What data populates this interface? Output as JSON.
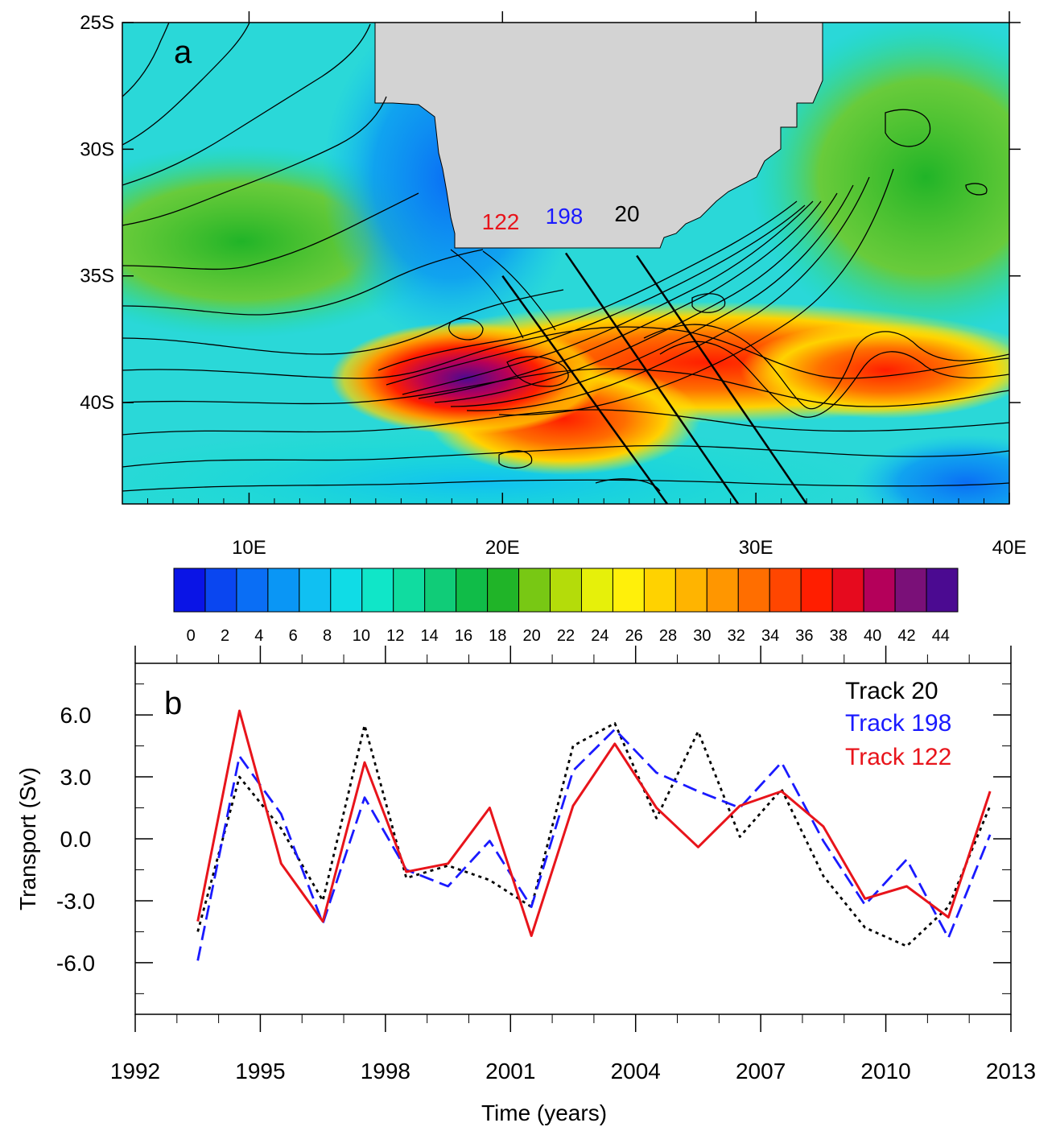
{
  "chart_data": [
    {
      "type": "heatmap",
      "panel_label": "a",
      "x_ticks": [
        "10E",
        "20E",
        "30E",
        "40E"
      ],
      "y_ticks": [
        "25S",
        "30S",
        "35S",
        "40S"
      ],
      "xlim": [
        5,
        40
      ],
      "ylim": [
        -44,
        -25
      ],
      "track_labels": [
        {
          "text": "122",
          "color": "#e8141b"
        },
        {
          "text": "198",
          "color": "#1a1aff"
        },
        {
          "text": "20",
          "color": "#000000"
        }
      ],
      "tracks": [
        {
          "name": "122",
          "start": [
            20.0,
            -35.0
          ],
          "end": [
            26.5,
            -44.0
          ]
        },
        {
          "name": "198",
          "start": [
            22.5,
            -34.1
          ],
          "end": [
            29.3,
            -44.0
          ]
        },
        {
          "name": "20",
          "start": [
            25.3,
            -34.2
          ],
          "end": [
            32.0,
            -44.0
          ]
        }
      ],
      "land_color": "#d3d3d3",
      "colorbar": {
        "ticks": [
          "0",
          "2",
          "4",
          "6",
          "8",
          "10",
          "12",
          "14",
          "16",
          "18",
          "20",
          "22",
          "24",
          "26",
          "28",
          "30",
          "32",
          "34",
          "36",
          "38",
          "40",
          "42",
          "44"
        ],
        "range": [
          -1,
          45
        ],
        "colors": [
          "#0a14e6",
          "#0a46f0",
          "#0a6ef5",
          "#0a96f5",
          "#10c0f2",
          "#10dce6",
          "#10e6c8",
          "#10dca0",
          "#10cc78",
          "#10bc48",
          "#20b428",
          "#78c814",
          "#b4dc0a",
          "#e6f00a",
          "#fff00a",
          "#ffd200",
          "#ffb400",
          "#ff9600",
          "#ff6e00",
          "#ff4600",
          "#ff1e00",
          "#e60a1e",
          "#b4005a",
          "#7a1078",
          "#4b0a91"
        ]
      }
    },
    {
      "type": "line",
      "panel_label": "b",
      "xlabel": "Time (years)",
      "ylabel": "Transport (Sv)",
      "xlim": [
        1992,
        2013
      ],
      "ylim": [
        -8.5,
        8.5
      ],
      "x_ticks": [
        1992,
        1995,
        1998,
        2001,
        2004,
        2007,
        2010,
        2013
      ],
      "y_ticks": [
        "6.0",
        "3.0",
        "0.0",
        "-3.0",
        "-6.0"
      ],
      "y_tick_values": [
        6,
        3,
        0,
        -3,
        -6
      ],
      "series": [
        {
          "name": "Track 20",
          "color": "#000000",
          "style": "dotted",
          "x": [
            1993.5,
            1994.5,
            1995.5,
            1996.5,
            1997.5,
            1998.5,
            1999.5,
            2000.5,
            2001.5,
            2002.5,
            2003.5,
            2004.5,
            2005.5,
            2006.5,
            2007.5,
            2008.5,
            2009.5,
            2010.5,
            2011.5,
            2012.5
          ],
          "values": [
            -4.5,
            3.0,
            0.5,
            -3.0,
            5.5,
            -1.9,
            -1.3,
            -2.0,
            -3.3,
            4.5,
            5.6,
            1.0,
            5.2,
            0.1,
            2.4,
            -1.8,
            -4.3,
            -5.2,
            -3.3,
            1.6
          ]
        },
        {
          "name": "Track 198",
          "color": "#1a1aff",
          "style": "dashed",
          "x": [
            1993.5,
            1994.5,
            1995.5,
            1996.5,
            1997.5,
            1998.5,
            1999.5,
            2000.5,
            2001.5,
            2002.5,
            2003.5,
            2004.5,
            2005.5,
            2006.5,
            2007.5,
            2008.5,
            2009.5,
            2010.5,
            2011.5,
            2012.5
          ],
          "values": [
            -5.9,
            4.0,
            1.2,
            -4.1,
            2.0,
            -1.5,
            -2.3,
            -0.1,
            -3.3,
            3.3,
            5.3,
            3.2,
            2.3,
            1.5,
            3.7,
            -0.1,
            -3.2,
            -1.0,
            -4.8,
            0.2
          ]
        },
        {
          "name": "Track 122",
          "color": "#e8141b",
          "style": "solid",
          "x": [
            1993.5,
            1994.5,
            1995.5,
            1996.5,
            1997.5,
            1998.5,
            1999.5,
            2000.5,
            2001.5,
            2002.5,
            2003.5,
            2004.5,
            2005.5,
            2006.5,
            2007.5,
            2008.5,
            2009.5,
            2010.5,
            2011.5,
            2012.5
          ],
          "values": [
            -4.0,
            6.2,
            -1.2,
            -4.0,
            3.7,
            -1.6,
            -1.2,
            1.5,
            -4.7,
            1.6,
            4.6,
            1.5,
            -0.4,
            1.6,
            2.3,
            0.6,
            -2.9,
            -2.3,
            -3.8,
            2.3
          ]
        }
      ],
      "legend_position": "top-right"
    }
  ]
}
